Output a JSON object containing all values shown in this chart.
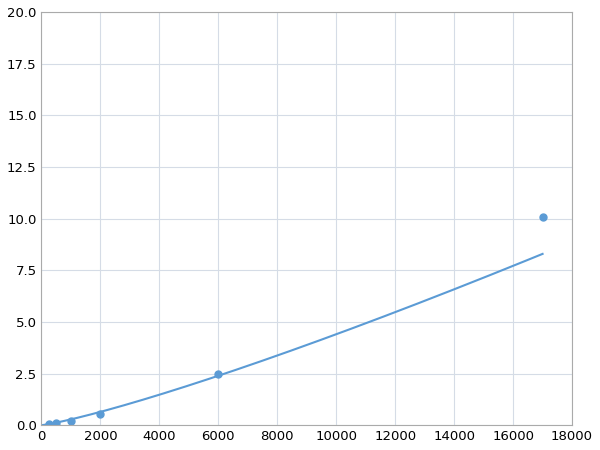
{
  "x": [
    250,
    500,
    1000,
    2000,
    6000,
    17000
  ],
  "y": [
    0.08,
    0.12,
    0.18,
    0.55,
    2.5,
    10.1
  ],
  "line_color": "#5b9bd5",
  "marker_color": "#5b9bd5",
  "marker_size": 5,
  "marker_style": "o",
  "line_width": 1.5,
  "xlim": [
    0,
    18000
  ],
  "ylim": [
    0,
    20
  ],
  "xticks": [
    0,
    2000,
    4000,
    6000,
    8000,
    10000,
    12000,
    14000,
    16000,
    18000
  ],
  "yticks": [
    0.0,
    2.5,
    5.0,
    7.5,
    10.0,
    12.5,
    15.0,
    17.5,
    20.0
  ],
  "grid_color": "#d5dce6",
  "background_color": "#ffffff",
  "tick_fontsize": 9.5
}
